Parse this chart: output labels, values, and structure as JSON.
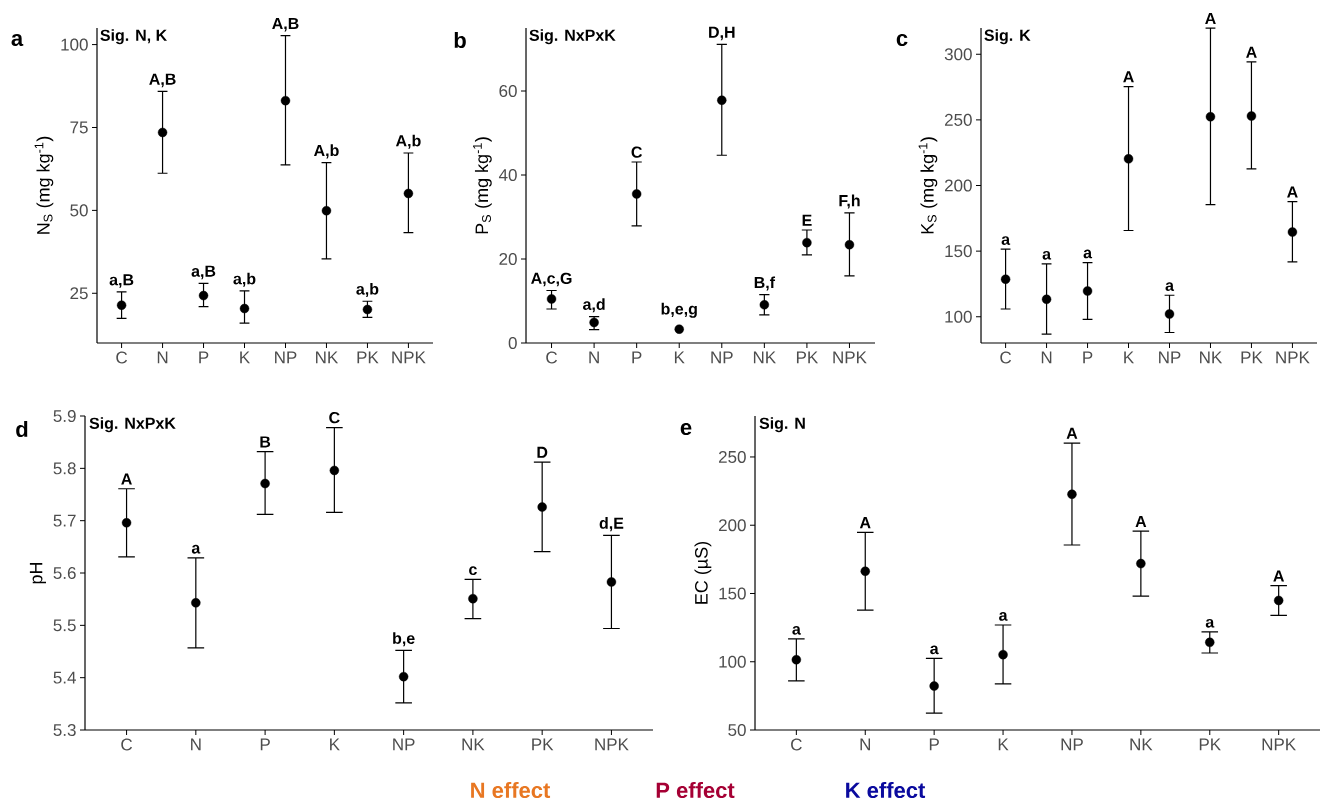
{
  "chart_data": [
    {
      "type": "scatter",
      "title": "a",
      "ylabel": "N$_{S}$ (mg kg$^{-1}$)",
      "categories": [
        "C",
        "N",
        "P",
        "K",
        "NP",
        "NK",
        "PK",
        "NPK"
      ],
      "color": "#000000",
      "marker": "circle",
      "values": [
        21.4,
        73.5,
        24.3,
        20.4,
        83.1,
        49.9,
        20.1,
        55.1
      ],
      "errors": [
        [
          17.4,
          25.4
        ],
        [
          61.2,
          85.9
        ],
        [
          21,
          28
        ],
        [
          16,
          25.7
        ],
        [
          63.7,
          102.7
        ],
        [
          35.4,
          64.4
        ],
        [
          17.7,
          22.6
        ],
        [
          43.3,
          67.3
        ]
      ],
      "ylim": [
        10,
        105
      ],
      "yticks": [
        25,
        50,
        75,
        100
      ],
      "annotations": [
        "Sig. N, K",
        {
          "text": "a,B",
          "x": "C",
          "y": 25.4
        },
        {
          "text": "A,B",
          "x": "N",
          "y": 85.9
        },
        {
          "text": "a,B",
          "x": "P",
          "y": 28
        },
        {
          "text": "a,b",
          "x": "K",
          "y": 25.7
        },
        {
          "text": "A,B",
          "x": "NP",
          "y": 102.7
        },
        {
          "text": "A,b",
          "x": "NK",
          "y": 64.4
        },
        {
          "text": "a,b",
          "x": "PK",
          "y": 22.6
        },
        {
          "text": "A,b",
          "x": "NPK",
          "y": 67.3
        }
      ]
    },
    {
      "type": "scatter",
      "title": "b",
      "ylabel": "P$_{S}$ (mg kg$^{-1}$)",
      "categories": [
        "C",
        "N",
        "P",
        "K",
        "NP",
        "NK",
        "PK",
        "NPK"
      ],
      "color": "#000000",
      "marker": "circle",
      "values": [
        10.5,
        4.9,
        35.5,
        3.3,
        57.8,
        9.1,
        23.9,
        23.4
      ],
      "errors": [
        [
          8.1,
          12.5
        ],
        [
          3.2,
          6.3
        ],
        [
          27.9,
          43.1
        ],
        null,
        [
          44.7,
          71.1
        ],
        [
          6.7,
          11.5
        ],
        [
          21,
          26.9
        ],
        [
          16,
          31
        ]
      ],
      "ylim": [
        0,
        75
      ],
      "yticks": [
        0,
        20,
        40,
        60
      ],
      "annotations": [
        "Sig. NxPxK",
        {
          "text": "A,c,G",
          "x": "C",
          "y": 12.5
        },
        {
          "text": "a,d",
          "x": "N",
          "y": 6.3
        },
        {
          "text": "C",
          "x": "P",
          "y": 43.1
        },
        {
          "text": "b,e,g",
          "x": "K",
          "y": 5
        },
        {
          "text": "D,H",
          "x": "NP",
          "y": 71.1
        },
        {
          "text": "B,f",
          "x": "NK",
          "y": 11.5
        },
        {
          "text": "E",
          "x": "PK",
          "y": 26.9
        },
        {
          "text": "F,h",
          "x": "NPK",
          "y": 31
        }
      ]
    },
    {
      "type": "scatter",
      "title": "c",
      "ylabel": "K$_{S}$ (mg kg$^{-1}$)",
      "categories": [
        "C",
        "N",
        "P",
        "K",
        "NP",
        "NK",
        "PK",
        "NPK"
      ],
      "color": "#000000",
      "marker": "circle",
      "values": [
        128.6,
        113.3,
        119.6,
        220.3,
        102.1,
        252.4,
        252.9,
        164.5
      ],
      "errors": [
        [
          105.9,
          151.5
        ],
        [
          86.8,
          140.3
        ],
        [
          98,
          141.3
        ],
        [
          165.7,
          275.4
        ],
        [
          88,
          116.4
        ],
        [
          185.4,
          319.9
        ],
        [
          212.7,
          294.2
        ],
        [
          141.8,
          187.7
        ]
      ],
      "ylim": [
        80,
        320
      ],
      "yticks": [
        100,
        150,
        200,
        250,
        300
      ],
      "annotations": [
        "Sig. K",
        {
          "text": "a",
          "x": "C",
          "y": 151.5
        },
        {
          "text": "a",
          "x": "N",
          "y": 140.3
        },
        {
          "text": "a",
          "x": "P",
          "y": 141.3
        },
        {
          "text": "A",
          "x": "K",
          "y": 275.4
        },
        {
          "text": "a",
          "x": "NP",
          "y": 116.4
        },
        {
          "text": "A",
          "x": "NK",
          "y": 319.9
        },
        {
          "text": "A",
          "x": "PK",
          "y": 294.2
        },
        {
          "text": "A",
          "x": "NPK",
          "y": 187.7
        }
      ]
    },
    {
      "type": "scatter",
      "title": "d",
      "ylabel": "pH",
      "categories": [
        "C",
        "N",
        "P",
        "K",
        "NP",
        "NK",
        "PK",
        "NPK"
      ],
      "color": "#000000",
      "marker": "circle",
      "values": [
        5.696,
        5.543,
        5.771,
        5.796,
        5.402,
        5.551,
        5.726,
        5.583
      ],
      "errors": [
        [
          5.631,
          5.761
        ],
        [
          5.457,
          5.629
        ],
        [
          5.712,
          5.832
        ],
        [
          5.716,
          5.878
        ],
        [
          5.352,
          5.452
        ],
        [
          5.513,
          5.588
        ],
        [
          5.641,
          5.812
        ],
        [
          5.494,
          5.672
        ]
      ],
      "ylim": [
        5.3,
        5.9
      ],
      "yticks": [
        5.3,
        5.4,
        5.5,
        5.6,
        5.7,
        5.8,
        5.9
      ],
      "annotations": [
        "Sig. NxPxK",
        {
          "text": "A",
          "x": "C",
          "y": 5.761
        },
        {
          "text": "a",
          "x": "N",
          "y": 5.629
        },
        {
          "text": "B",
          "x": "P",
          "y": 5.832
        },
        {
          "text": "C",
          "x": "K",
          "y": 5.878
        },
        {
          "text": "b,e",
          "x": "NP",
          "y": 5.452
        },
        {
          "text": "c",
          "x": "NK",
          "y": 5.588
        },
        {
          "text": "D",
          "x": "PK",
          "y": 5.812
        },
        {
          "text": "d,E",
          "x": "NPK",
          "y": 5.672
        }
      ]
    },
    {
      "type": "scatter",
      "title": "e",
      "ylabel": "EC (µS)",
      "categories": [
        "C",
        "N",
        "P",
        "K",
        "NP",
        "NK",
        "PK",
        "NPK"
      ],
      "color": "#000000",
      "marker": "circle",
      "values": [
        101.5,
        166.3,
        82.2,
        105.2,
        222.7,
        171.9,
        114.2,
        144.9
      ],
      "errors": [
        [
          86,
          116.7
        ],
        [
          137.8,
          194.8
        ],
        [
          62.4,
          102.4
        ],
        [
          83.8,
          126.9
        ],
        [
          185.5,
          260.2
        ],
        [
          148,
          195.7
        ],
        [
          106.4,
          121.9
        ],
        [
          134,
          155.7
        ]
      ],
      "ylim": [
        50,
        280
      ],
      "yticks": [
        50,
        100,
        150,
        200,
        250
      ],
      "annotations": [
        "Sig. N",
        {
          "text": "a",
          "x": "C",
          "y": 116.7
        },
        {
          "text": "A",
          "x": "N",
          "y": 194.8
        },
        {
          "text": "a",
          "x": "P",
          "y": 102.4
        },
        {
          "text": "a",
          "x": "K",
          "y": 126.9
        },
        {
          "text": "A",
          "x": "NP",
          "y": 260.2
        },
        {
          "text": "A",
          "x": "NK",
          "y": 195.7
        },
        {
          "text": "a",
          "x": "PK",
          "y": 121.9
        },
        {
          "text": "A",
          "x": "NPK",
          "y": 155.7
        }
      ]
    },
    {
      "type": "other",
      "categories": [
        "N effect",
        "P effect",
        "K effect"
      ],
      "colors": [
        "#e87722",
        "#a50034",
        "#0a0a9e"
      ]
    }
  ]
}
